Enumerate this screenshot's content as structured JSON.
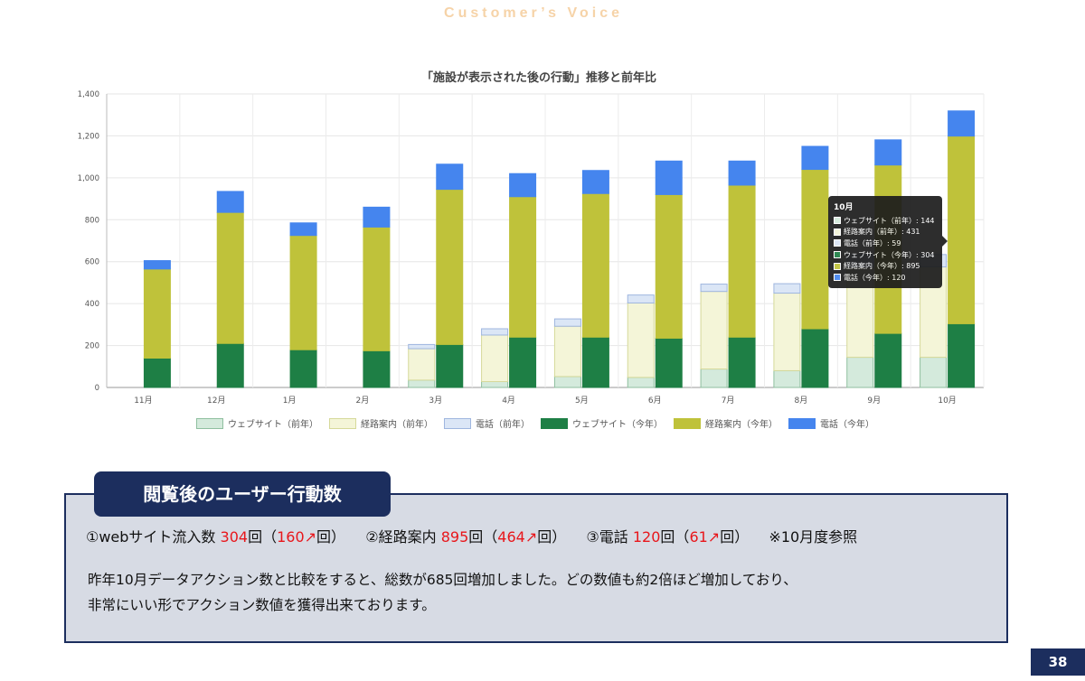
{
  "header": {
    "title": "Customer’s Voice"
  },
  "chart_data": {
    "type": "bar",
    "title": "「施設が表示された後の行動」推移と前年比",
    "categories": [
      "11月",
      "12月",
      "1月",
      "2月",
      "3月",
      "4月",
      "5月",
      "6月",
      "7月",
      "8月",
      "9月",
      "10月"
    ],
    "ylim": [
      0,
      1400
    ],
    "yticks": [
      0,
      200,
      400,
      600,
      800,
      1000,
      1200,
      1400
    ],
    "ytick_labels": [
      "0",
      "200",
      "400",
      "600",
      "800",
      "1,000",
      "1,200",
      "1,400"
    ],
    "grid": true,
    "legend_position": "bottom",
    "stacks": [
      "前年",
      "今年"
    ],
    "series": [
      {
        "name": "ウェブサイト（前年）",
        "stack": "前年",
        "color": "#d4eadc",
        "border": "#8fbf9f",
        "values": [
          0,
          0,
          0,
          0,
          35,
          28,
          52,
          48,
          88,
          80,
          144,
          144
        ]
      },
      {
        "name": "経路案内（前年）",
        "stack": "前年",
        "color": "#f4f5d8",
        "border": "#d6d99a",
        "values": [
          0,
          0,
          0,
          0,
          150,
          222,
          240,
          355,
          370,
          370,
          431,
          431
        ]
      },
      {
        "name": "電話（前年）",
        "stack": "前年",
        "color": "#dbe6f6",
        "border": "#9fb6df",
        "values": [
          0,
          0,
          0,
          0,
          20,
          30,
          35,
          38,
          35,
          45,
          59,
          59
        ]
      },
      {
        "name": "ウェブサイト（今年）",
        "stack": "今年",
        "color": "#1e7f45",
        "border": "#1e7f45",
        "values": [
          140,
          210,
          180,
          175,
          205,
          240,
          240,
          235,
          240,
          280,
          258,
          304
        ]
      },
      {
        "name": "経路案内（今年）",
        "stack": "今年",
        "color": "#bfc23a",
        "border": "#bfc23a",
        "values": [
          425,
          625,
          545,
          590,
          740,
          670,
          685,
          685,
          725,
          760,
          803,
          895
        ]
      },
      {
        "name": "電話（今年）",
        "stack": "今年",
        "color": "#4585ee",
        "border": "#4585ee",
        "values": [
          40,
          100,
          60,
          95,
          120,
          110,
          110,
          160,
          115,
          110,
          120,
          120
        ]
      }
    ]
  },
  "tooltip": {
    "title": "10月",
    "rows": [
      {
        "label": "ウェブサイト（前年）: 144",
        "color": "#d4eadc"
      },
      {
        "label": "経路案内（前年）: 431",
        "color": "#f4f5d8"
      },
      {
        "label": "電話（前年）: 59",
        "color": "#dbe6f6"
      },
      {
        "label": "ウェブサイト（今年）: 304",
        "color": "#1e7f45"
      },
      {
        "label": "経路案内（今年）: 895",
        "color": "#bfc23a"
      },
      {
        "label": "電話（今年）: 120",
        "color": "#4585ee"
      }
    ]
  },
  "summary": {
    "label": "閲覧後のユーザー行動数",
    "m1_label": "①webサイト流入数",
    "m1_value": "304",
    "m1_unit": "回（",
    "m1_delta": "160",
    "m1_arrow": "↗",
    "m1_close": "回）",
    "m2_label": "②経路案内",
    "m2_value": "895",
    "m2_unit": "回（",
    "m2_delta": "464",
    "m2_arrow": "↗",
    "m2_close": "回）",
    "m3_label": "③電話",
    "m3_value": "120",
    "m3_unit": "回（",
    "m3_delta": "61",
    "m3_arrow": "↗",
    "m3_close": "回）",
    "note": "※10月度参照",
    "line1": "昨年10月データアクション数と比較をすると、総数が685回増加しました。どの数値も約2倍ほど増加しており、",
    "line2": "非常にいい形でアクション数値を獲得出来ております。"
  },
  "page": {
    "number": "38"
  }
}
